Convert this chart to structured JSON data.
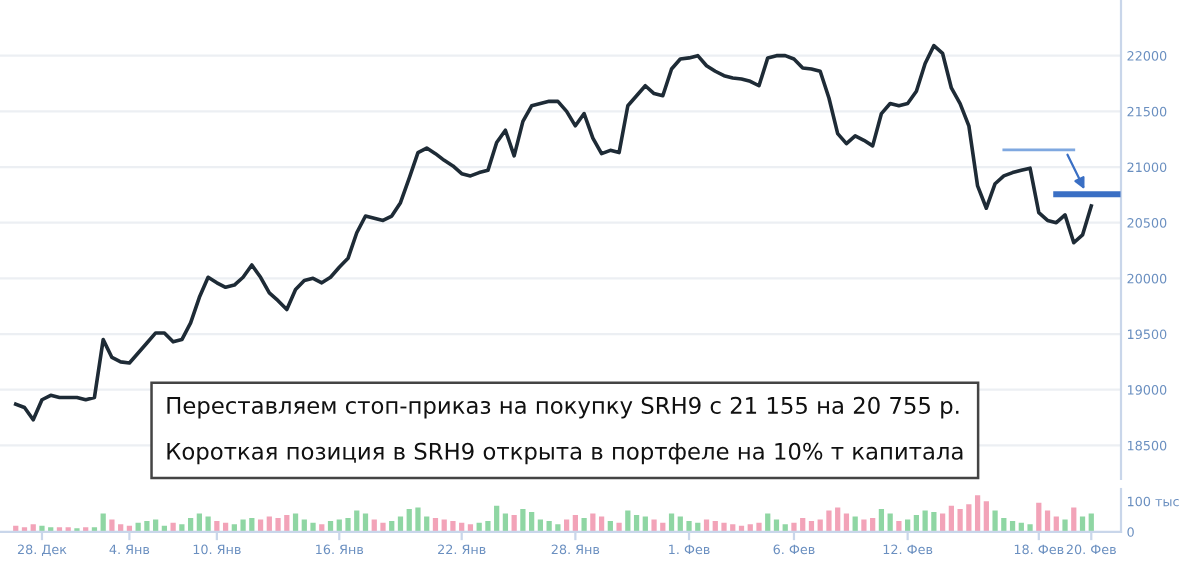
{
  "chart_data": [
    {
      "type": "line",
      "tick_labels": "y",
      "grid": "y",
      "marker": "none",
      "line_style": "solid",
      "ylim": [
        18200,
        22500
      ],
      "yticks": [
        18500,
        19000,
        19500,
        20000,
        20500,
        21000,
        21500,
        22000
      ],
      "series": [
        {
          "color": "#1e2b36",
          "values": [
            18870,
            18840,
            18730,
            18910,
            18950,
            18930,
            18930,
            18930,
            18910,
            18930,
            19450,
            19290,
            19250,
            19240,
            19330,
            19420,
            19510,
            19510,
            19430,
            19450,
            19600,
            19830,
            20010,
            19960,
            19920,
            19940,
            20010,
            20120,
            20010,
            19870,
            19800,
            19720,
            19900,
            19980,
            20000,
            19960,
            20010,
            20100,
            20180,
            20410,
            20560,
            20540,
            20520,
            20560,
            20680,
            20900,
            21130,
            21170,
            21120,
            21060,
            21010,
            20940,
            20920,
            20950,
            20970,
            21220,
            21330,
            21100,
            21410,
            21550,
            21570,
            21590,
            21590,
            21500,
            21370,
            21480,
            21260,
            21120,
            21150,
            21130,
            21550,
            21640,
            21730,
            21660,
            21640,
            21880,
            21970,
            21980,
            22000,
            21910,
            21860,
            21820,
            21800,
            21790,
            21770,
            21730,
            21980,
            22000,
            22000,
            21970,
            21890,
            21880,
            21860,
            21620,
            21300,
            21210,
            21280,
            21240,
            21190,
            21480,
            21570,
            21550,
            21570,
            21680,
            21930,
            22090,
            22020,
            21710,
            21570,
            21370,
            20830,
            20630,
            20850,
            20920,
            20950,
            20970,
            20990,
            20590,
            20520,
            20500,
            20570,
            20320,
            20390,
            20650,
            null,
            null,
            null
          ]
        },
        {
          "color": "#7fa8e0",
          "values": [
            null,
            null,
            null,
            null,
            null,
            null,
            null,
            null,
            null,
            null,
            null,
            null,
            null,
            null,
            null,
            null,
            null,
            null,
            null,
            null,
            null,
            null,
            null,
            null,
            null,
            null,
            null,
            null,
            null,
            null,
            null,
            null,
            null,
            null,
            null,
            null,
            null,
            null,
            null,
            null,
            null,
            null,
            null,
            null,
            null,
            null,
            null,
            null,
            null,
            null,
            null,
            null,
            null,
            null,
            null,
            null,
            null,
            null,
            null,
            null,
            null,
            null,
            null,
            null,
            null,
            null,
            null,
            null,
            null,
            null,
            null,
            null,
            null,
            null,
            null,
            null,
            null,
            null,
            null,
            null,
            null,
            null,
            null,
            null,
            null,
            null,
            null,
            null,
            null,
            null,
            null,
            null,
            null,
            null,
            null,
            null,
            null,
            null,
            null,
            null,
            null,
            null,
            null,
            null,
            null,
            null,
            null,
            null,
            null,
            null,
            null,
            null,
            null,
            21155,
            21155,
            21155,
            21155,
            21155,
            21155,
            21155,
            21155,
            21155,
            null,
            null,
            null,
            null,
            null
          ]
        },
        {
          "color": "#3a6fc4",
          "values": [
            null,
            null,
            null,
            null,
            null,
            null,
            null,
            null,
            null,
            null,
            null,
            null,
            null,
            null,
            null,
            null,
            null,
            null,
            null,
            null,
            null,
            null,
            null,
            null,
            null,
            null,
            null,
            null,
            null,
            null,
            null,
            null,
            null,
            null,
            null,
            null,
            null,
            null,
            null,
            null,
            null,
            null,
            null,
            null,
            null,
            null,
            null,
            null,
            null,
            null,
            null,
            null,
            null,
            null,
            null,
            null,
            null,
            null,
            null,
            null,
            null,
            null,
            null,
            null,
            null,
            null,
            null,
            null,
            null,
            null,
            null,
            null,
            null,
            null,
            null,
            null,
            null,
            null,
            null,
            null,
            null,
            null,
            null,
            null,
            null,
            null,
            null,
            null,
            null,
            null,
            null,
            null,
            null,
            null,
            null,
            null,
            null,
            null,
            null,
            null,
            null,
            null,
            null,
            null,
            null,
            null,
            null,
            null,
            null,
            null,
            null,
            null,
            null,
            null,
            null,
            null,
            null,
            null,
            null,
            20755,
            20755,
            20755,
            20755,
            20755,
            20755,
            20755,
            20755
          ]
        }
      ],
      "annotations": [
        "Переставляем стоп-приказ на покупку SRH9 с 21 155 на 20 755 р.",
        "Короткая позиция в SRH9 открыта в портфеле на 10% т капитала"
      ]
    },
    {
      "type": "bar",
      "grid": false,
      "categories": [
        null,
        null,
        null,
        "28. Дек",
        null,
        null,
        null,
        null,
        null,
        null,
        null,
        null,
        null,
        "4. Янв",
        null,
        null,
        null,
        null,
        null,
        null,
        null,
        null,
        null,
        "10. Янв",
        null,
        null,
        null,
        null,
        null,
        null,
        null,
        null,
        null,
        null,
        null,
        null,
        null,
        "16. Янв",
        null,
        null,
        null,
        null,
        null,
        null,
        null,
        null,
        null,
        null,
        null,
        null,
        null,
        "22. Янв",
        null,
        null,
        null,
        null,
        null,
        null,
        null,
        null,
        null,
        null,
        null,
        null,
        "28. Янв",
        null,
        null,
        null,
        null,
        null,
        null,
        null,
        null,
        null,
        null,
        null,
        null,
        "1. Фев",
        null,
        null,
        null,
        null,
        null,
        null,
        null,
        null,
        null,
        null,
        null,
        "6. Фев",
        null,
        null,
        null,
        null,
        null,
        null,
        null,
        null,
        null,
        null,
        null,
        null,
        "12. Фев",
        null,
        null,
        null,
        null,
        null,
        null,
        null,
        null,
        null,
        null,
        null,
        null,
        null,
        null,
        "18. Фев",
        null,
        null,
        null,
        null,
        null,
        "20. Фев",
        null,
        null,
        null
      ],
      "ylim": [
        0,
        140
      ],
      "yticks": [
        0,
        {
          "value": 100,
          "label": "100 тыс"
        }
      ],
      "series": [
        {
          "color": "#8fd6a3",
          "values": [
            null,
            null,
            null,
            20,
            15,
            null,
            null,
            12,
            null,
            15,
            60,
            null,
            null,
            null,
            30,
            35,
            40,
            20,
            null,
            25,
            45,
            60,
            50,
            null,
            null,
            25,
            40,
            45,
            null,
            null,
            null,
            null,
            60,
            40,
            30,
            null,
            35,
            40,
            45,
            70,
            60,
            null,
            null,
            35,
            50,
            75,
            80,
            50,
            null,
            null,
            null,
            null,
            null,
            30,
            35,
            85,
            60,
            null,
            75,
            65,
            40,
            35,
            25,
            null,
            null,
            45,
            null,
            null,
            35,
            null,
            70,
            55,
            50,
            null,
            null,
            60,
            50,
            35,
            30,
            null,
            null,
            null,
            null,
            null,
            null,
            null,
            60,
            40,
            25,
            null,
            null,
            null,
            null,
            null,
            null,
            null,
            50,
            null,
            null,
            75,
            60,
            null,
            40,
            55,
            70,
            65,
            null,
            null,
            null,
            null,
            null,
            null,
            70,
            45,
            35,
            30,
            25,
            null,
            null,
            null,
            40,
            null,
            50,
            60,
            null,
            null,
            null
          ]
        },
        {
          "color": "#f2a3b8",
          "values": [
            20,
            15,
            25,
            null,
            null,
            15,
            15,
            null,
            15,
            null,
            null,
            40,
            25,
            20,
            null,
            null,
            null,
            null,
            30,
            null,
            null,
            null,
            null,
            35,
            30,
            null,
            null,
            null,
            40,
            50,
            45,
            55,
            null,
            null,
            null,
            25,
            null,
            null,
            null,
            null,
            null,
            40,
            30,
            null,
            null,
            null,
            null,
            null,
            45,
            40,
            35,
            30,
            25,
            null,
            null,
            null,
            null,
            55,
            null,
            null,
            null,
            null,
            null,
            40,
            55,
            null,
            60,
            50,
            null,
            30,
            null,
            null,
            null,
            40,
            30,
            null,
            null,
            null,
            null,
            40,
            35,
            30,
            25,
            20,
            25,
            30,
            null,
            null,
            null,
            30,
            45,
            35,
            40,
            70,
            80,
            60,
            null,
            40,
            45,
            null,
            null,
            35,
            null,
            null,
            null,
            null,
            60,
            85,
            75,
            90,
            120,
            100,
            null,
            null,
            null,
            null,
            null,
            95,
            70,
            50,
            null,
            80,
            null,
            null,
            null,
            null,
            null
          ]
        }
      ]
    }
  ]
}
